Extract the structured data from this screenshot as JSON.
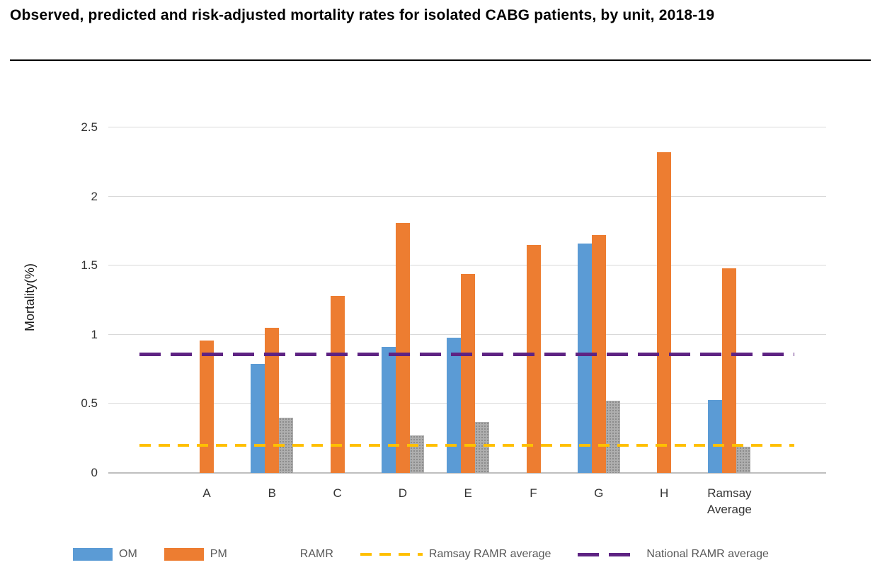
{
  "title": "Observed, predicted and risk-adjusted mortality rates for isolated CABG patients, by unit, 2018-19",
  "chart_data": {
    "type": "bar",
    "title": "Observed, predicted and risk-adjusted mortality rates for isolated CABG patients, by unit, 2018-19",
    "xlabel": "",
    "ylabel": "Mortality(%)",
    "ylim": [
      0,
      2.5
    ],
    "yticks": [
      0,
      0.5,
      1,
      1.5,
      2,
      2.5
    ],
    "grid": true,
    "legend_position": "bottom",
    "categories": [
      "A",
      "B",
      "C",
      "D",
      "E",
      "F",
      "G",
      "H",
      "Ramsay Average"
    ],
    "series": [
      {
        "name": "OM",
        "color": "#5B9BD5",
        "pattern": false,
        "values": [
          null,
          0.79,
          null,
          0.91,
          0.98,
          null,
          1.66,
          null,
          0.53
        ]
      },
      {
        "name": "PM",
        "color": "#ED7D31",
        "pattern": false,
        "values": [
          0.96,
          1.05,
          1.28,
          1.81,
          1.44,
          1.65,
          1.72,
          2.32,
          1.48
        ]
      },
      {
        "name": "RAMR",
        "color": "#A6A6A6",
        "pattern": true,
        "values": [
          null,
          0.4,
          null,
          0.27,
          0.37,
          null,
          0.52,
          null,
          0.19
        ]
      }
    ],
    "reference_lines": [
      {
        "name": "Ramsay RAMR average",
        "value": 0.2,
        "color": "#FFC000",
        "style": "dashed"
      },
      {
        "name": "National RAMR average",
        "value": 0.86,
        "color": "#5E2383",
        "style": "dashed"
      }
    ]
  }
}
